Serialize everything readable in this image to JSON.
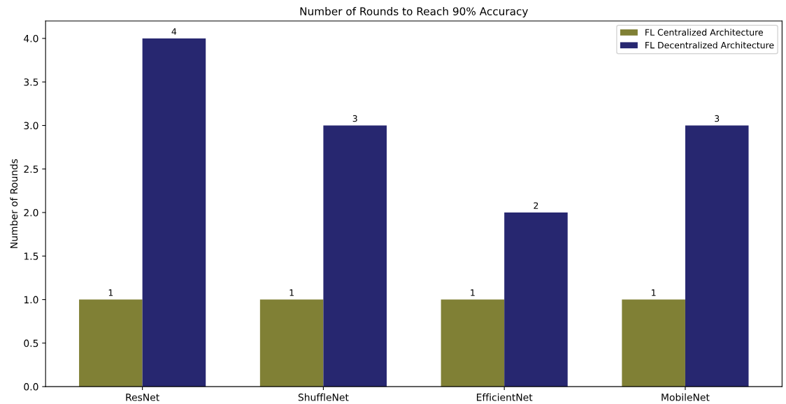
{
  "chart_data": {
    "type": "bar",
    "title": "Number of Rounds to Reach 90% Accuracy",
    "ylabel": "Number of Rounds",
    "categories": [
      "ResNet",
      "ShuffleNet",
      "EfficientNet",
      "MobileNet"
    ],
    "series": [
      {
        "name": "FL Centralized Architecture",
        "color": "#808035",
        "values": [
          1,
          1,
          1,
          1
        ]
      },
      {
        "name": "FL Decentralized Architecture",
        "color": "#272770",
        "values": [
          4,
          3,
          2,
          3
        ]
      }
    ],
    "ylim": [
      0,
      4.2
    ],
    "yticks": [
      {
        "value": 0,
        "label": "0.0"
      },
      {
        "value": 0.5,
        "label": "0.5"
      },
      {
        "value": 1,
        "label": "1.0"
      },
      {
        "value": 1.5,
        "label": "1.5"
      },
      {
        "value": 2,
        "label": "2.0"
      },
      {
        "value": 2.5,
        "label": "2.5"
      },
      {
        "value": 3,
        "label": "3.0"
      },
      {
        "value": 3.5,
        "label": "3.5"
      },
      {
        "value": 4,
        "label": "4.0"
      }
    ],
    "data_labels": true,
    "legend": "top right",
    "grid": false
  }
}
